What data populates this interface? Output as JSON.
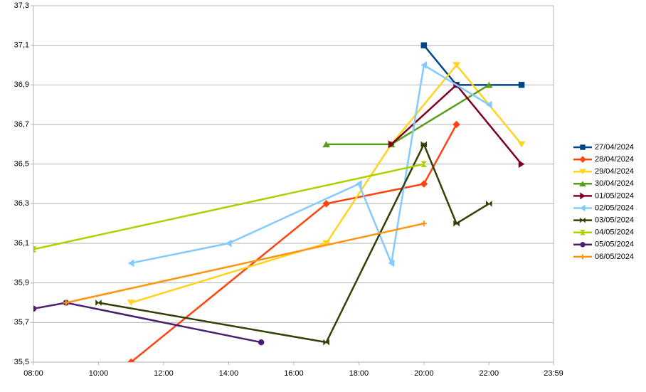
{
  "chart_data": {
    "type": "line",
    "xlim": [
      8,
      23.983
    ],
    "ylim": [
      35.5,
      37.3
    ],
    "xticks": [
      {
        "value": 8,
        "label": "08:00"
      },
      {
        "value": 10,
        "label": "10:00"
      },
      {
        "value": 12,
        "label": "12:00"
      },
      {
        "value": 14,
        "label": "14:00"
      },
      {
        "value": 16,
        "label": "16:00"
      },
      {
        "value": 18,
        "label": "18:00"
      },
      {
        "value": 20,
        "label": "20:00"
      },
      {
        "value": 22,
        "label": "22:00"
      },
      {
        "value": 23.983,
        "label": "23:59"
      }
    ],
    "yticks": [
      {
        "value": 35.5,
        "label": "35,5"
      },
      {
        "value": 35.7,
        "label": "35,7"
      },
      {
        "value": 35.9,
        "label": "35,9"
      },
      {
        "value": 36.1,
        "label": "36,1"
      },
      {
        "value": 36.3,
        "label": "36,3"
      },
      {
        "value": 36.5,
        "label": "36,5"
      },
      {
        "value": 36.7,
        "label": "36,7"
      },
      {
        "value": 36.9,
        "label": "36,9"
      },
      {
        "value": 37.1,
        "label": "37,1"
      },
      {
        "value": 37.3,
        "label": "37,3"
      }
    ],
    "grid": true,
    "legend": "right",
    "series": [
      {
        "name": "27/04/2024",
        "color": "#004586",
        "marker": "square",
        "x": [
          20,
          21,
          23
        ],
        "values": [
          37.1,
          36.9,
          36.9
        ]
      },
      {
        "name": "28/04/2024",
        "color": "#ff420e",
        "marker": "diamond",
        "x": [
          11,
          17,
          20,
          21
        ],
        "values": [
          35.5,
          36.3,
          36.4,
          36.7
        ]
      },
      {
        "name": "29/04/2024",
        "color": "#ffd320",
        "marker": "down",
        "x": [
          11,
          17,
          19,
          21,
          23
        ],
        "values": [
          35.8,
          36.1,
          36.6,
          37.0,
          36.6
        ]
      },
      {
        "name": "30/04/2024",
        "color": "#579d1c",
        "marker": "up",
        "x": [
          17,
          19,
          22
        ],
        "values": [
          36.6,
          36.6,
          36.9
        ]
      },
      {
        "name": "01/05/2024",
        "color": "#7e0021",
        "marker": "right",
        "x": [
          19,
          21,
          23
        ],
        "values": [
          36.6,
          36.9,
          36.5
        ]
      },
      {
        "name": "02/05/2024",
        "color": "#83caff",
        "marker": "left",
        "x": [
          11,
          14,
          18,
          19,
          20,
          22
        ],
        "values": [
          36.0,
          36.1,
          36.4,
          36.0,
          37.0,
          36.8
        ]
      },
      {
        "name": "03/05/2024",
        "color": "#314004",
        "marker": "bowtie",
        "x": [
          10,
          17,
          20,
          21,
          22
        ],
        "values": [
          35.8,
          35.6,
          36.6,
          36.2,
          36.3
        ]
      },
      {
        "name": "04/05/2024",
        "color": "#aecf00",
        "marker": "hourglass",
        "x": [
          8,
          20
        ],
        "values": [
          36.07,
          36.5
        ]
      },
      {
        "name": "05/05/2024",
        "color": "#4b1f6f",
        "marker": "circle",
        "x": [
          8,
          9,
          15
        ],
        "values": [
          35.77,
          35.8,
          35.6
        ]
      },
      {
        "name": "06/05/2024",
        "color": "#ff950e",
        "marker": "plus",
        "x": [
          9,
          20
        ],
        "values": [
          35.8,
          36.2
        ]
      }
    ]
  }
}
